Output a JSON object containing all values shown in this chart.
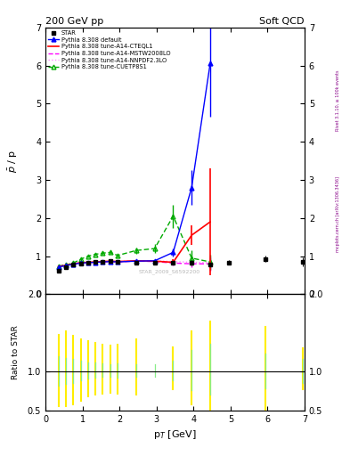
{
  "title_left": "200 GeV pp",
  "title_right": "Soft QCD",
  "ylabel_main": "$\\bar{p}$ / p",
  "ylabel_ratio": "Ratio to STAR",
  "xlabel": "p$_{T}$ [GeV]",
  "right_label_top": "Rivet 3.1.10, ≥ 100k events",
  "right_label_bot": "mcplots.cern.ch [arXiv:1306.3436]",
  "ylim_main": [
    0,
    7
  ],
  "ylim_ratio": [
    0.5,
    2
  ],
  "xlim": [
    0,
    7
  ],
  "star_x": [
    0.35,
    0.55,
    0.75,
    0.95,
    1.15,
    1.35,
    1.55,
    1.75,
    1.95,
    2.45,
    2.95,
    3.45,
    3.95,
    4.45,
    4.95,
    5.95,
    6.95
  ],
  "star_y": [
    0.62,
    0.72,
    0.77,
    0.8,
    0.83,
    0.85,
    0.86,
    0.87,
    0.85,
    0.83,
    0.82,
    0.83,
    0.84,
    0.79,
    0.83,
    0.93,
    0.85
  ],
  "star_yerr": [
    0.05,
    0.04,
    0.04,
    0.04,
    0.04,
    0.04,
    0.04,
    0.04,
    0.04,
    0.04,
    0.04,
    0.04,
    0.05,
    0.05,
    0.06,
    0.08,
    0.12
  ],
  "pythia_default_x": [
    0.35,
    0.55,
    0.75,
    0.95,
    1.15,
    1.35,
    1.55,
    1.75,
    1.95,
    2.45,
    2.95,
    3.45,
    3.95,
    4.45
  ],
  "pythia_default_y": [
    0.72,
    0.75,
    0.79,
    0.82,
    0.83,
    0.84,
    0.85,
    0.86,
    0.85,
    0.87,
    0.88,
    1.1,
    2.8,
    6.05
  ],
  "pythia_default_yerr": [
    0.02,
    0.02,
    0.02,
    0.02,
    0.02,
    0.02,
    0.02,
    0.02,
    0.02,
    0.03,
    0.04,
    0.1,
    0.45,
    1.4
  ],
  "pythia_cteq_x": [
    0.35,
    0.55,
    0.75,
    0.95,
    1.15,
    1.35,
    1.55,
    1.75,
    1.95,
    2.45,
    2.95,
    3.45,
    3.95,
    4.45
  ],
  "pythia_cteq_y": [
    0.73,
    0.76,
    0.8,
    0.83,
    0.84,
    0.85,
    0.86,
    0.87,
    0.86,
    0.88,
    0.87,
    0.84,
    1.55,
    1.9
  ],
  "pythia_cteq_yerr": [
    0.02,
    0.02,
    0.02,
    0.02,
    0.02,
    0.02,
    0.02,
    0.02,
    0.02,
    0.03,
    0.04,
    0.08,
    0.25,
    1.4
  ],
  "pythia_mstw_x": [
    0.35,
    0.55,
    0.75,
    0.95,
    1.15,
    1.35,
    1.55,
    1.75,
    1.95,
    2.45,
    2.95,
    3.45,
    3.95,
    4.45
  ],
  "pythia_mstw_y": [
    0.73,
    0.76,
    0.8,
    0.82,
    0.83,
    0.84,
    0.85,
    0.86,
    0.85,
    0.87,
    0.86,
    0.82,
    0.8,
    0.8
  ],
  "pythia_mstw_yerr": [
    0.02,
    0.02,
    0.02,
    0.02,
    0.02,
    0.02,
    0.02,
    0.02,
    0.02,
    0.03,
    0.04,
    0.06,
    0.1,
    0.18
  ],
  "pythia_nnpdf_x": [
    0.35,
    0.55,
    0.75,
    0.95,
    1.15,
    1.35,
    1.55,
    1.75,
    1.95,
    2.45,
    2.95,
    3.45,
    3.95,
    4.45
  ],
  "pythia_nnpdf_y": [
    0.74,
    0.77,
    0.81,
    0.83,
    0.84,
    0.85,
    0.86,
    0.87,
    0.86,
    0.88,
    0.88,
    0.86,
    0.84,
    0.83
  ],
  "pythia_nnpdf_yerr": [
    0.02,
    0.02,
    0.02,
    0.02,
    0.02,
    0.02,
    0.02,
    0.02,
    0.02,
    0.03,
    0.04,
    0.06,
    0.1,
    0.18
  ],
  "pythia_cuetp_x": [
    0.35,
    0.55,
    0.75,
    0.95,
    1.15,
    1.35,
    1.55,
    1.75,
    1.95,
    2.45,
    2.95,
    3.45,
    3.95,
    4.45
  ],
  "pythia_cuetp_y": [
    0.74,
    0.77,
    0.82,
    0.92,
    1.0,
    1.05,
    1.08,
    1.1,
    1.02,
    1.15,
    1.2,
    2.05,
    0.95,
    0.85
  ],
  "pythia_cuetp_yerr": [
    0.03,
    0.03,
    0.03,
    0.04,
    0.04,
    0.04,
    0.04,
    0.04,
    0.05,
    0.08,
    0.12,
    0.3,
    0.2,
    0.2
  ],
  "color_star": "#000000",
  "color_default": "#0000ff",
  "color_cteq": "#ff0000",
  "color_mstw": "#ff00ff",
  "color_nnpdf": "#ff88ff",
  "color_cuetp": "#00aa00",
  "ratio_yellow_x": [
    0.35,
    0.55,
    0.75,
    0.95,
    1.15,
    1.35,
    1.55,
    1.75,
    1.95,
    2.45,
    3.45,
    3.95,
    4.45,
    5.95,
    6.95
  ],
  "ratio_yellow_lo": [
    0.55,
    0.55,
    0.58,
    0.62,
    0.68,
    0.7,
    0.72,
    0.73,
    0.72,
    0.7,
    0.77,
    0.58,
    0.48,
    0.48,
    0.77
  ],
  "ratio_yellow_hi": [
    1.48,
    1.52,
    1.47,
    1.42,
    1.4,
    1.37,
    1.35,
    1.34,
    1.35,
    1.42,
    1.32,
    1.52,
    1.65,
    1.58,
    1.3
  ],
  "ratio_green_x": [
    0.35,
    0.55,
    0.75,
    0.95,
    1.15,
    1.35,
    1.55,
    1.75,
    1.95,
    2.45,
    2.95,
    3.45,
    3.95,
    4.45,
    5.95,
    6.95
  ],
  "ratio_green_lo": [
    0.82,
    0.84,
    0.86,
    0.89,
    0.91,
    0.92,
    0.93,
    0.93,
    0.92,
    0.93,
    0.93,
    0.89,
    0.76,
    0.7,
    0.79,
    0.86
  ],
  "ratio_green_hi": [
    1.2,
    1.18,
    1.16,
    1.14,
    1.12,
    1.12,
    1.11,
    1.1,
    1.11,
    1.1,
    1.1,
    1.14,
    1.28,
    1.36,
    1.23,
    1.17
  ],
  "watermark": "STAR_2009_S6592200"
}
